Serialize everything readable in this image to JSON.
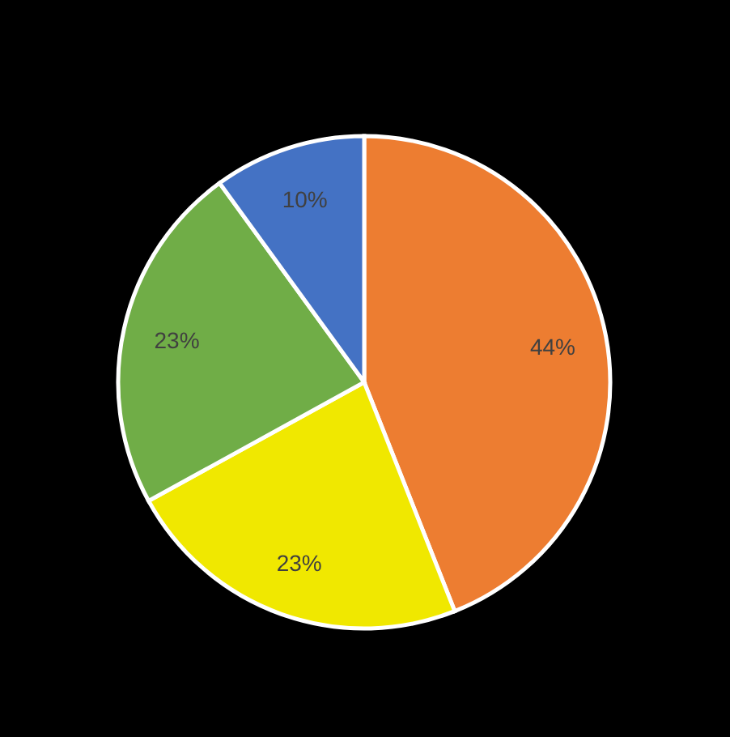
{
  "chart_data": {
    "type": "pie",
    "categories": [
      null,
      null,
      null,
      null
    ],
    "values": [
      44,
      23,
      23,
      10
    ],
    "colors": [
      "#ed7d31",
      "#f0e800",
      "#70ad47",
      "#4472c4"
    ],
    "value_labels": [
      "44%",
      "23%",
      "23%",
      "10%"
    ]
  }
}
